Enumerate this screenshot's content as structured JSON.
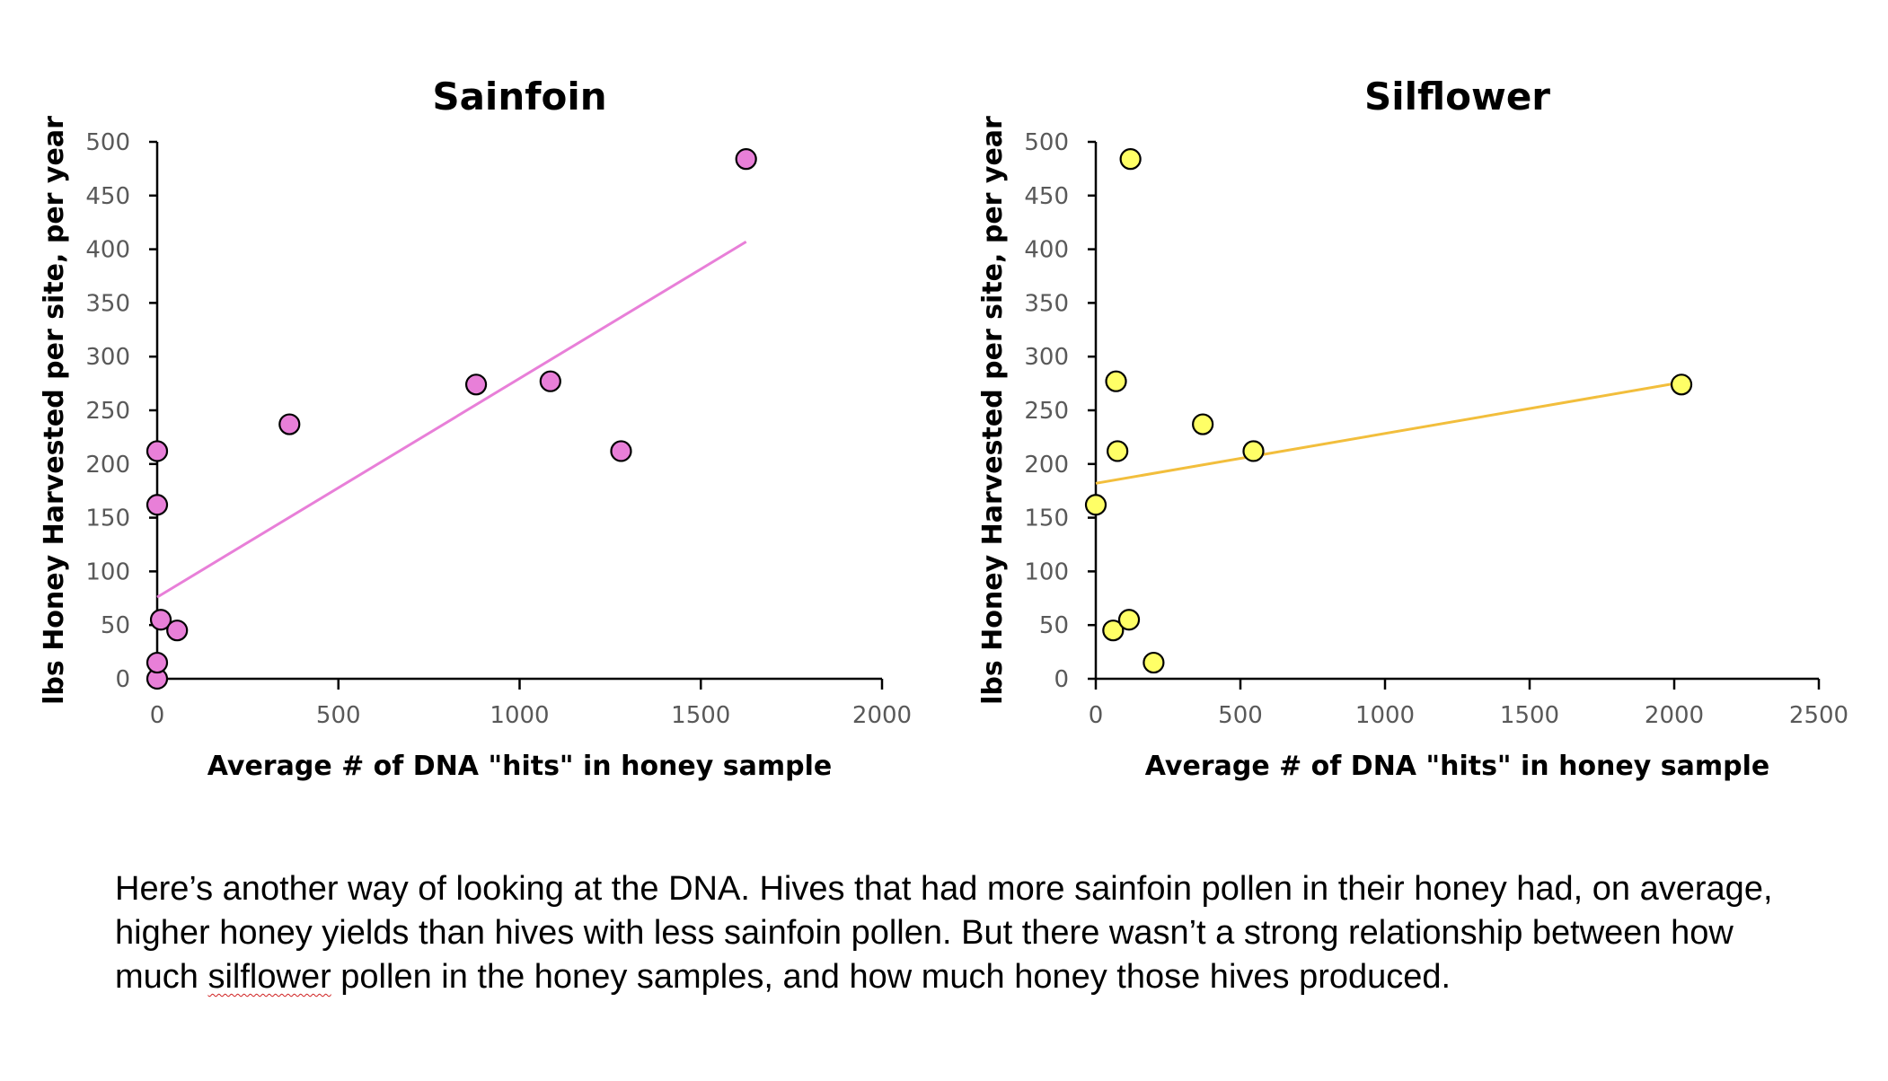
{
  "chart_data": [
    {
      "type": "scatter",
      "title": "Sainfoin",
      "xlabel": "Average # of DNA \"hits\" in honey sample",
      "ylabel": "lbs Honey Harvested per site, per year",
      "xlim": [
        0,
        2000
      ],
      "ylim": [
        0,
        500
      ],
      "xticks": [
        "0",
        "500",
        "1000",
        "1500",
        "2000"
      ],
      "yticks": [
        "0",
        "50",
        "100",
        "150",
        "200",
        "250",
        "300",
        "350",
        "400",
        "450",
        "500"
      ],
      "grid": false,
      "marker_color": "#e87fd8",
      "trendline_color": "#e87fd8",
      "series": [
        {
          "x": [
            0,
            0,
            0,
            0,
            10,
            55,
            365,
            880,
            1085,
            1280,
            1625
          ],
          "y": [
            0,
            15,
            162,
            212,
            55,
            45,
            237,
            274,
            277,
            212,
            484
          ]
        }
      ],
      "trendline": {
        "x": [
          0,
          1625
        ],
        "y": [
          76,
          407
        ]
      }
    },
    {
      "type": "scatter",
      "title": "Silflower",
      "xlabel": "Average # of DNA \"hits\" in honey sample",
      "ylabel": "lbs Honey Harvested per site, per year",
      "xlim": [
        0,
        2500
      ],
      "ylim": [
        0,
        500
      ],
      "xticks": [
        "0",
        "500",
        "1000",
        "1500",
        "2000",
        "2500"
      ],
      "yticks": [
        "0",
        "50",
        "100",
        "150",
        "200",
        "250",
        "300",
        "350",
        "400",
        "450",
        "500"
      ],
      "grid": false,
      "marker_color": "#ffff66",
      "trendline_color": "#f2be3c",
      "series": [
        {
          "x": [
            0,
            60,
            115,
            120,
            200,
            70,
            75,
            370,
            545,
            2025
          ],
          "y": [
            162,
            45,
            55,
            484,
            15,
            277,
            212,
            237,
            212,
            274
          ]
        }
      ],
      "trendline": {
        "x": [
          0,
          2025
        ],
        "y": [
          182,
          276
        ]
      }
    }
  ],
  "caption": {
    "line1": "Here’s another way of looking at the DNA.  Hives that had more sainfoin pollen in their honey had, on average,",
    "line2": "higher honey yields than hives with less sainfoin pollen.  But there wasn’t a strong relationship between how",
    "line3_before": "much ",
    "line3_flagged": "silflower",
    "line3_after": " pollen in the honey samples, and how much honey those hives produced."
  }
}
